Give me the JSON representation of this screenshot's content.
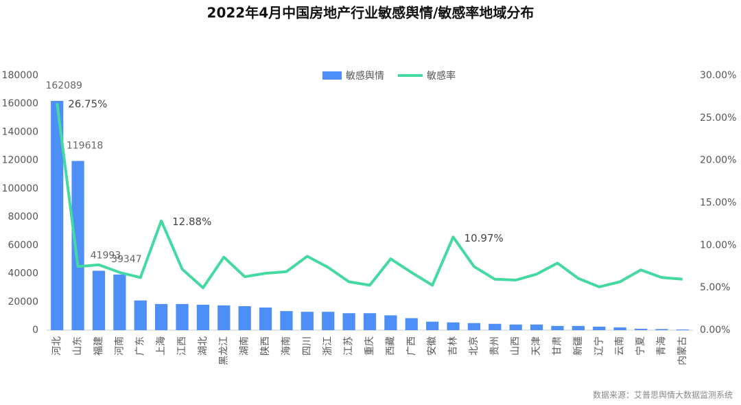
{
  "chart_data": {
    "type": "bar_line",
    "title": "2022年4月中国房地产行业敏感舆情/敏感率地域分布",
    "source": "数据来源：艾普思舆情大数据监测系统",
    "categories": [
      "河北",
      "山东",
      "福建",
      "河南",
      "广东",
      "上海",
      "江西",
      "湖北",
      "黑龙江",
      "湖南",
      "陕西",
      "海南",
      "四川",
      "浙江",
      "江苏",
      "重庆",
      "西藏",
      "广西",
      "安徽",
      "吉林",
      "北京",
      "贵州",
      "山西",
      "天津",
      "甘肃",
      "新疆",
      "辽宁",
      "云南",
      "宁夏",
      "青海",
      "内蒙古"
    ],
    "series": [
      {
        "name": "敏感舆情",
        "type": "bar",
        "color": "#4e8ef7",
        "values": [
          162089,
          119618,
          41993,
          39347,
          21000,
          18500,
          18500,
          18000,
          17500,
          17000,
          16000,
          13500,
          13000,
          13000,
          12000,
          12000,
          10500,
          8500,
          6000,
          5500,
          5000,
          4500,
          4000,
          4000,
          3000,
          3000,
          2500,
          2000,
          1000,
          800,
          500
        ],
        "value_labels": [
          "162089",
          "119618",
          "41993",
          "39347",
          null,
          null,
          null,
          null,
          null,
          null,
          null,
          null,
          null,
          null,
          null,
          null,
          null,
          null,
          null,
          null,
          null,
          null,
          null,
          null,
          null,
          null,
          null,
          null,
          null,
          null,
          null
        ]
      },
      {
        "name": "敏感率",
        "type": "line",
        "axis": "y2",
        "color": "#43d9a0",
        "values": [
          26.75,
          7.5,
          7.7,
          6.8,
          6.2,
          12.88,
          7.2,
          5.0,
          8.6,
          6.3,
          6.7,
          6.9,
          8.7,
          7.4,
          5.7,
          5.3,
          8.4,
          6.8,
          5.3,
          10.97,
          7.5,
          6.0,
          5.9,
          6.6,
          7.9,
          6.1,
          5.1,
          5.7,
          7.1,
          6.2,
          6.0
        ],
        "value_labels": [
          "26.75%",
          null,
          null,
          null,
          null,
          "12.88%",
          null,
          null,
          null,
          null,
          null,
          null,
          null,
          null,
          null,
          null,
          null,
          null,
          null,
          "10.97%",
          null,
          null,
          null,
          null,
          null,
          null,
          null,
          null,
          null,
          null,
          null
        ]
      }
    ],
    "ylim": [
      0,
      180000
    ],
    "yticks": [
      0,
      20000,
      40000,
      60000,
      80000,
      100000,
      120000,
      140000,
      160000,
      180000
    ],
    "y2lim": [
      0,
      30
    ],
    "y2ticks": [
      {
        "value": 0,
        "label": "0.00%"
      },
      {
        "value": 5,
        "label": "5.00%"
      },
      {
        "value": 10,
        "label": "10.00%"
      },
      {
        "value": 15,
        "label": "15.00%"
      },
      {
        "value": 20,
        "label": "20.00%"
      },
      {
        "value": 25,
        "label": "25.00%"
      },
      {
        "value": 30,
        "label": "30.00%"
      }
    ],
    "legend": "top"
  }
}
